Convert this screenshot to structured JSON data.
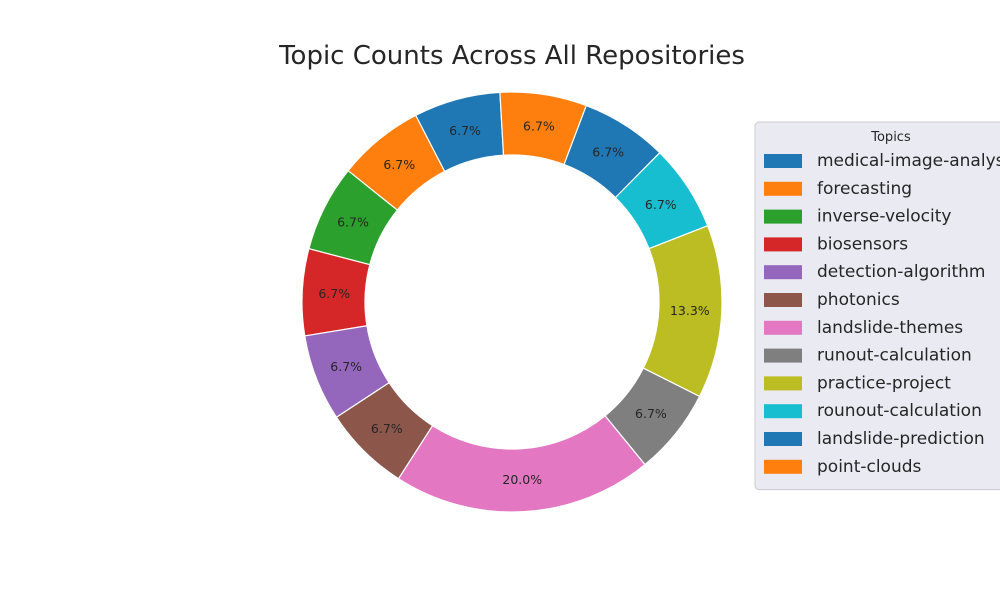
{
  "chart_data": {
    "type": "pie",
    "donut": true,
    "title": "Topic Counts Across All Repositories",
    "legend_title": "Topics",
    "legend_position": "right",
    "categories": [
      "medical-image-analysis",
      "forecasting",
      "inverse-velocity",
      "biosensors",
      "detection-algorithm",
      "photonics",
      "landslide-themes",
      "runout-calculation",
      "practice-project",
      "rounout-calculation",
      "landslide-prediction",
      "point-clouds"
    ],
    "values": [
      1,
      1,
      1,
      1,
      1,
      1,
      3,
      1,
      2,
      1,
      1,
      1
    ],
    "percent_labels": [
      "6.7%",
      "6.7%",
      "6.7%",
      "6.7%",
      "6.7%",
      "6.7%",
      "20.0%",
      "6.7%",
      "13.3%",
      "6.7%",
      "6.7%",
      "6.7%"
    ],
    "colors": [
      "#1f77b4",
      "#ff7f0e",
      "#2ca02c",
      "#d62728",
      "#9467bd",
      "#8c564b",
      "#e377c2",
      "#7f7f7f",
      "#bcbd22",
      "#17becf",
      "#1f77b4",
      "#ff7f0e"
    ]
  }
}
